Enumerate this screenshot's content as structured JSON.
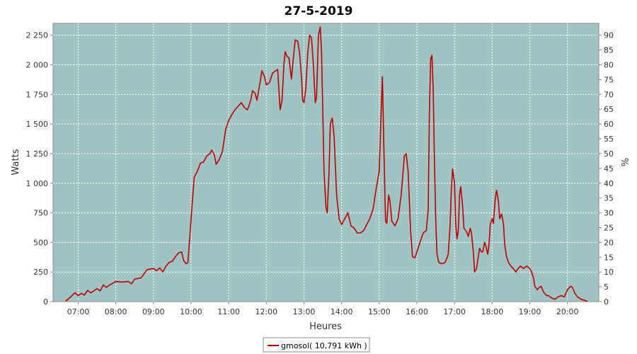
{
  "chart_data": {
    "type": "line",
    "title": "27-5-2019",
    "xlabel": "Heures",
    "ylabel": "Watts",
    "y2label": "%",
    "x_ticks": [
      "07:00",
      "08:00",
      "09:00",
      "10:00",
      "11:00",
      "12:00",
      "13:00",
      "14:00",
      "15:00",
      "16:00",
      "17:00",
      "18:00",
      "19:00",
      "20:00"
    ],
    "y_ticks": [
      "0",
      "250",
      "500",
      "750",
      "1 000",
      "1 250",
      "1 500",
      "1 750",
      "2 000",
      "2 250"
    ],
    "y2_ticks": [
      "0",
      "5",
      "10",
      "15",
      "20",
      "25",
      "30",
      "35",
      "40",
      "45",
      "50",
      "55",
      "60",
      "65",
      "70",
      "75",
      "80",
      "85",
      "90"
    ],
    "xlim": [
      "06:20",
      "20:50"
    ],
    "ylim": [
      0,
      2350
    ],
    "y2lim": [
      0,
      94
    ],
    "grid": true,
    "legend_position": "bottom",
    "plot_background": "#a0c4c4",
    "series": [
      {
        "name": "gmosol( 10,791 kWh )",
        "color": "#bf0000",
        "points": [
          [
            "06:40",
            5
          ],
          [
            "06:45",
            25
          ],
          [
            "06:50",
            50
          ],
          [
            "06:55",
            75
          ],
          [
            "07:00",
            50
          ],
          [
            "07:05",
            70
          ],
          [
            "07:10",
            55
          ],
          [
            "07:15",
            95
          ],
          [
            "07:20",
            75
          ],
          [
            "07:25",
            90
          ],
          [
            "07:30",
            110
          ],
          [
            "07:35",
            90
          ],
          [
            "07:40",
            140
          ],
          [
            "07:45",
            120
          ],
          [
            "07:50",
            140
          ],
          [
            "08:00",
            170
          ],
          [
            "08:10",
            165
          ],
          [
            "08:20",
            170
          ],
          [
            "08:25",
            150
          ],
          [
            "08:30",
            190
          ],
          [
            "08:40",
            200
          ],
          [
            "08:50",
            270
          ],
          [
            "09:00",
            280
          ],
          [
            "09:05",
            260
          ],
          [
            "09:10",
            285
          ],
          [
            "09:15",
            250
          ],
          [
            "09:20",
            300
          ],
          [
            "09:25",
            330
          ],
          [
            "09:30",
            340
          ],
          [
            "09:35",
            380
          ],
          [
            "09:40",
            410
          ],
          [
            "09:45",
            420
          ],
          [
            "09:48",
            350
          ],
          [
            "09:52",
            320
          ],
          [
            "09:55",
            330
          ],
          [
            "10:00",
            700
          ],
          [
            "10:05",
            1050
          ],
          [
            "10:10",
            1100
          ],
          [
            "10:15",
            1170
          ],
          [
            "10:20",
            1180
          ],
          [
            "10:25",
            1230
          ],
          [
            "10:30",
            1250
          ],
          [
            "10:33",
            1280
          ],
          [
            "10:37",
            1240
          ],
          [
            "10:40",
            1160
          ],
          [
            "10:45",
            1200
          ],
          [
            "10:50",
            1270
          ],
          [
            "10:55",
            1450
          ],
          [
            "11:00",
            1530
          ],
          [
            "11:05",
            1580
          ],
          [
            "11:10",
            1620
          ],
          [
            "11:15",
            1650
          ],
          [
            "11:20",
            1680
          ],
          [
            "11:25",
            1640
          ],
          [
            "11:30",
            1620
          ],
          [
            "11:35",
            1700
          ],
          [
            "11:38",
            1780
          ],
          [
            "11:42",
            1760
          ],
          [
            "11:45",
            1700
          ],
          [
            "11:50",
            1850
          ],
          [
            "11:53",
            1950
          ],
          [
            "11:57",
            1900
          ],
          [
            "12:00",
            1830
          ],
          [
            "12:05",
            1850
          ],
          [
            "12:10",
            1930
          ],
          [
            "12:15",
            1950
          ],
          [
            "12:18",
            1960
          ],
          [
            "12:22",
            1620
          ],
          [
            "12:25",
            1700
          ],
          [
            "12:28",
            2000
          ],
          [
            "12:30",
            2110
          ],
          [
            "12:33",
            2070
          ],
          [
            "12:36",
            2060
          ],
          [
            "12:40",
            1880
          ],
          [
            "12:43",
            2050
          ],
          [
            "12:46",
            2210
          ],
          [
            "12:50",
            2200
          ],
          [
            "12:53",
            2100
          ],
          [
            "12:56",
            1900
          ],
          [
            "12:58",
            1700
          ],
          [
            "13:00",
            1680
          ],
          [
            "13:03",
            1800
          ],
          [
            "13:06",
            2100
          ],
          [
            "13:09",
            2250
          ],
          [
            "13:12",
            2230
          ],
          [
            "13:15",
            2000
          ],
          [
            "13:18",
            1680
          ],
          [
            "13:20",
            1720
          ],
          [
            "13:23",
            2250
          ],
          [
            "13:26",
            2320
          ],
          [
            "13:28",
            2100
          ],
          [
            "13:30",
            1600
          ],
          [
            "13:32",
            1100
          ],
          [
            "13:35",
            800
          ],
          [
            "13:37",
            750
          ],
          [
            "13:40",
            1100
          ],
          [
            "13:42",
            1500
          ],
          [
            "13:45",
            1550
          ],
          [
            "13:48",
            1400
          ],
          [
            "13:52",
            900
          ],
          [
            "13:56",
            700
          ],
          [
            "14:00",
            650
          ],
          [
            "14:05",
            700
          ],
          [
            "14:10",
            750
          ],
          [
            "14:15",
            640
          ],
          [
            "14:20",
            620
          ],
          [
            "14:25",
            580
          ],
          [
            "14:30",
            580
          ],
          [
            "14:35",
            600
          ],
          [
            "14:40",
            650
          ],
          [
            "14:45",
            700
          ],
          [
            "14:50",
            780
          ],
          [
            "14:55",
            950
          ],
          [
            "15:00",
            1100
          ],
          [
            "15:03",
            1600
          ],
          [
            "15:05",
            1900
          ],
          [
            "15:07",
            1400
          ],
          [
            "15:10",
            680
          ],
          [
            "15:12",
            660
          ],
          [
            "15:15",
            900
          ],
          [
            "15:17",
            850
          ],
          [
            "15:20",
            680
          ],
          [
            "15:25",
            640
          ],
          [
            "15:30",
            700
          ],
          [
            "15:35",
            900
          ],
          [
            "15:40",
            1230
          ],
          [
            "15:43",
            1250
          ],
          [
            "15:46",
            1100
          ],
          [
            "15:50",
            600
          ],
          [
            "15:53",
            380
          ],
          [
            "15:57",
            370
          ],
          [
            "16:00",
            420
          ],
          [
            "16:05",
            500
          ],
          [
            "16:10",
            580
          ],
          [
            "16:15",
            600
          ],
          [
            "16:18",
            780
          ],
          [
            "16:20",
            1600
          ],
          [
            "16:22",
            2050
          ],
          [
            "16:24",
            2080
          ],
          [
            "16:26",
            1800
          ],
          [
            "16:28",
            1200
          ],
          [
            "16:30",
            700
          ],
          [
            "16:32",
            400
          ],
          [
            "16:35",
            330
          ],
          [
            "16:40",
            320
          ],
          [
            "16:45",
            330
          ],
          [
            "16:50",
            400
          ],
          [
            "16:53",
            650
          ],
          [
            "16:55",
            950
          ],
          [
            "16:57",
            1120
          ],
          [
            "17:00",
            1000
          ],
          [
            "17:02",
            650
          ],
          [
            "17:04",
            530
          ],
          [
            "17:06",
            600
          ],
          [
            "17:08",
            900
          ],
          [
            "17:10",
            970
          ],
          [
            "17:13",
            800
          ],
          [
            "17:15",
            620
          ],
          [
            "17:18",
            600
          ],
          [
            "17:20",
            580
          ],
          [
            "17:22",
            550
          ],
          [
            "17:25",
            620
          ],
          [
            "17:27",
            580
          ],
          [
            "17:30",
            420
          ],
          [
            "17:32",
            250
          ],
          [
            "17:35",
            280
          ],
          [
            "17:38",
            380
          ],
          [
            "17:40",
            450
          ],
          [
            "17:43",
            420
          ],
          [
            "17:45",
            420
          ],
          [
            "17:48",
            500
          ],
          [
            "17:50",
            470
          ],
          [
            "17:53",
            400
          ],
          [
            "17:55",
            480
          ],
          [
            "17:57",
            650
          ],
          [
            "18:00",
            700
          ],
          [
            "18:02",
            660
          ],
          [
            "18:05",
            870
          ],
          [
            "18:07",
            940
          ],
          [
            "18:10",
            850
          ],
          [
            "18:12",
            700
          ],
          [
            "18:15",
            740
          ],
          [
            "18:18",
            660
          ],
          [
            "18:20",
            480
          ],
          [
            "18:23",
            380
          ],
          [
            "18:26",
            330
          ],
          [
            "18:30",
            300
          ],
          [
            "18:35",
            270
          ],
          [
            "18:38",
            250
          ],
          [
            "18:40",
            270
          ],
          [
            "18:45",
            300
          ],
          [
            "18:50",
            280
          ],
          [
            "18:55",
            300
          ],
          [
            "19:00",
            280
          ],
          [
            "19:03",
            250
          ],
          [
            "19:06",
            200
          ],
          [
            "19:08",
            130
          ],
          [
            "19:12",
            100
          ],
          [
            "19:15",
            120
          ],
          [
            "19:18",
            130
          ],
          [
            "19:22",
            80
          ],
          [
            "19:27",
            50
          ],
          [
            "19:30",
            50
          ],
          [
            "19:35",
            30
          ],
          [
            "19:40",
            20
          ],
          [
            "19:45",
            40
          ],
          [
            "19:50",
            50
          ],
          [
            "19:55",
            40
          ],
          [
            "20:00",
            100
          ],
          [
            "20:05",
            130
          ],
          [
            "20:08",
            120
          ],
          [
            "20:12",
            70
          ],
          [
            "20:16",
            40
          ],
          [
            "20:22",
            20
          ],
          [
            "20:28",
            10
          ],
          [
            "20:32",
            0
          ]
        ]
      }
    ]
  }
}
